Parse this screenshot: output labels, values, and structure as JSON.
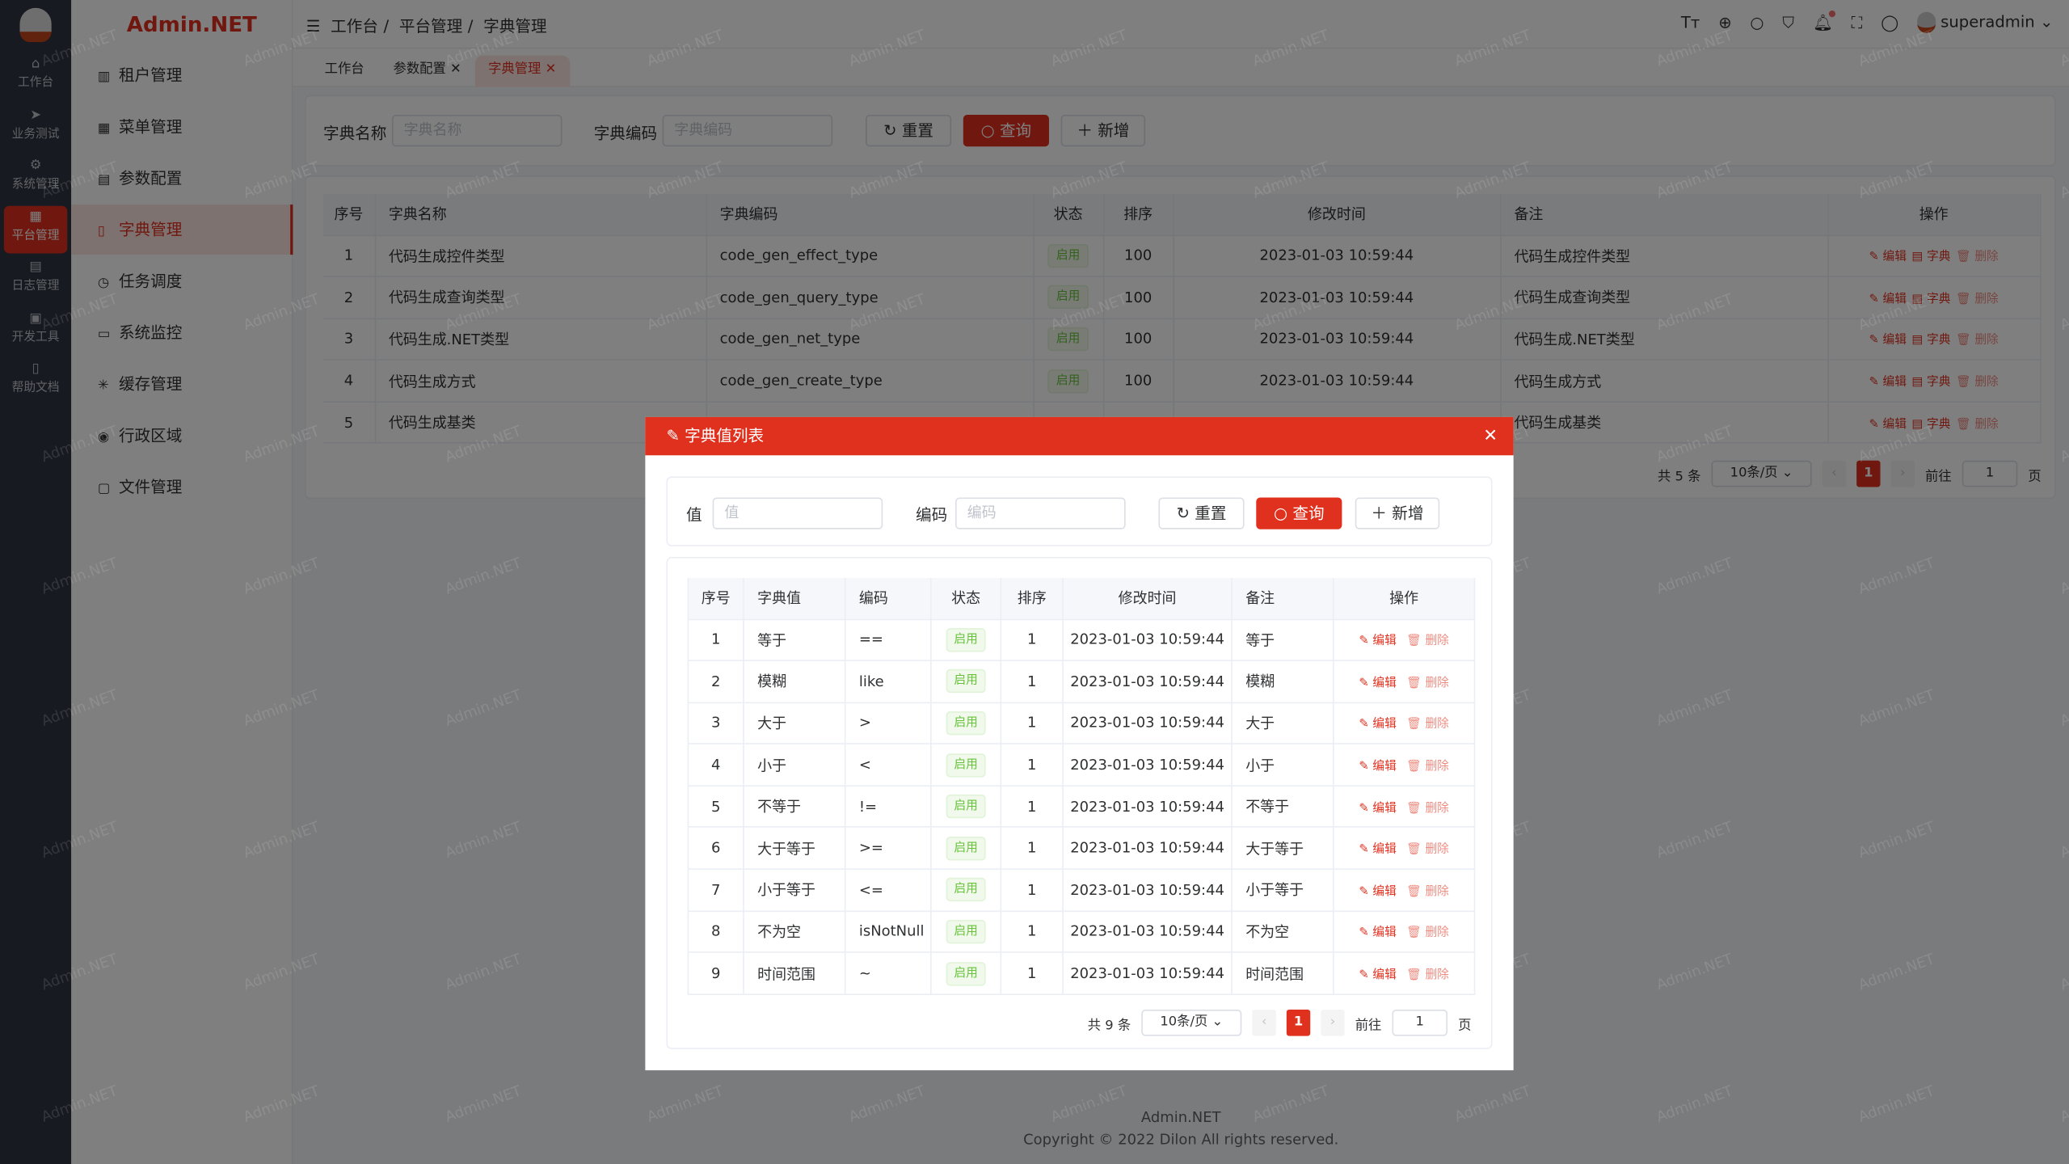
{
  "brand": "Admin.NET",
  "watermark": "Admin.NET",
  "rail": [
    {
      "label": "工作台",
      "icon": "home-icon"
    },
    {
      "label": "业务测试",
      "icon": "send-icon"
    },
    {
      "label": "系统管理",
      "icon": "gear-icon"
    },
    {
      "label": "平台管理",
      "icon": "grid-icon",
      "active": true
    },
    {
      "label": "日志管理",
      "icon": "document-icon"
    },
    {
      "label": "开发工具",
      "icon": "chip-icon"
    },
    {
      "label": "帮助文档",
      "icon": "book-icon"
    }
  ],
  "menu": [
    {
      "label": "租户管理",
      "icon": "building-icon"
    },
    {
      "label": "菜单管理",
      "icon": "grid-icon"
    },
    {
      "label": "参数配置",
      "icon": "document-icon"
    },
    {
      "label": "字典管理",
      "icon": "book-icon",
      "active": true
    },
    {
      "label": "任务调度",
      "icon": "alarm-icon"
    },
    {
      "label": "系统监控",
      "icon": "monitor-icon"
    },
    {
      "label": "缓存管理",
      "icon": "loading-icon"
    },
    {
      "label": "行政区域",
      "icon": "location-icon"
    },
    {
      "label": "文件管理",
      "icon": "file-icon"
    }
  ],
  "breadcrumb": [
    "工作台",
    "平台管理",
    "字典管理"
  ],
  "user": {
    "name": "superadmin"
  },
  "tabs": [
    {
      "label": "工作台"
    },
    {
      "label": "参数配置",
      "closable": true
    },
    {
      "label": "字典管理",
      "closable": true,
      "active": true
    }
  ],
  "search": {
    "name_label": "字典名称",
    "name_placeholder": "字典名称",
    "code_label": "字典编码",
    "code_placeholder": "字典编码",
    "reset": "重置",
    "query": "查询",
    "add": "新增"
  },
  "table": {
    "columns": [
      "序号",
      "字典名称",
      "字典编码",
      "状态",
      "排序",
      "修改时间",
      "备注",
      "操作"
    ],
    "rows": [
      {
        "no": "1",
        "name": "代码生成控件类型",
        "code": "code_gen_effect_type",
        "status": "启用",
        "order": "100",
        "time": "2023-01-03 10:59:44",
        "remark": "代码生成控件类型"
      },
      {
        "no": "2",
        "name": "代码生成查询类型",
        "code": "code_gen_query_type",
        "status": "启用",
        "order": "100",
        "time": "2023-01-03 10:59:44",
        "remark": "代码生成查询类型"
      },
      {
        "no": "3",
        "name": "代码生成.NET类型",
        "code": "code_gen_net_type",
        "status": "启用",
        "order": "100",
        "time": "2023-01-03 10:59:44",
        "remark": "代码生成.NET类型"
      },
      {
        "no": "4",
        "name": "代码生成方式",
        "code": "code_gen_create_type",
        "status": "启用",
        "order": "100",
        "time": "2023-01-03 10:59:44",
        "remark": "代码生成方式"
      },
      {
        "no": "5",
        "name": "代码生成基类",
        "code": "",
        "status": "",
        "order": "",
        "time": "",
        "remark": "代码生成基类"
      }
    ],
    "actions": {
      "edit": "编辑",
      "dict": "字典",
      "delete": "删除"
    }
  },
  "pagination": {
    "total": "共 5 条",
    "page_size": "10条/页",
    "current": "1",
    "goto": "前往",
    "goto_value": "1",
    "page_suffix": "页"
  },
  "footer": {
    "name": "Admin.NET",
    "copyright": "Copyright © 2022 Dilon All rights reserved."
  },
  "modal": {
    "title": "字典值列表",
    "search": {
      "value_label": "值",
      "value_placeholder": "值",
      "code_label": "编码",
      "code_placeholder": "编码",
      "reset": "重置",
      "query": "查询",
      "add": "新增"
    },
    "columns": [
      "序号",
      "字典值",
      "编码",
      "状态",
      "排序",
      "修改时间",
      "备注",
      "操作"
    ],
    "rows": [
      {
        "no": "1",
        "value": "等于",
        "code": "==",
        "status": "启用",
        "order": "1",
        "time": "2023-01-03 10:59:44",
        "remark": "等于"
      },
      {
        "no": "2",
        "value": "模糊",
        "code": "like",
        "status": "启用",
        "order": "1",
        "time": "2023-01-03 10:59:44",
        "remark": "模糊"
      },
      {
        "no": "3",
        "value": "大于",
        "code": ">",
        "status": "启用",
        "order": "1",
        "time": "2023-01-03 10:59:44",
        "remark": "大于"
      },
      {
        "no": "4",
        "value": "小于",
        "code": "<",
        "status": "启用",
        "order": "1",
        "time": "2023-01-03 10:59:44",
        "remark": "小于"
      },
      {
        "no": "5",
        "value": "不等于",
        "code": "!=",
        "status": "启用",
        "order": "1",
        "time": "2023-01-03 10:59:44",
        "remark": "不等于"
      },
      {
        "no": "6",
        "value": "大于等于",
        "code": ">=",
        "status": "启用",
        "order": "1",
        "time": "2023-01-03 10:59:44",
        "remark": "大于等于"
      },
      {
        "no": "7",
        "value": "小于等于",
        "code": "<=",
        "status": "启用",
        "order": "1",
        "time": "2023-01-03 10:59:44",
        "remark": "小于等于"
      },
      {
        "no": "8",
        "value": "不为空",
        "code": "isNotNull",
        "status": "启用",
        "order": "1",
        "time": "2023-01-03 10:59:44",
        "remark": "不为空"
      },
      {
        "no": "9",
        "value": "时间范围",
        "code": "~",
        "status": "启用",
        "order": "1",
        "time": "2023-01-03 10:59:44",
        "remark": "时间范围"
      }
    ],
    "actions": {
      "edit": "编辑",
      "delete": "删除"
    },
    "pagination": {
      "total": "共 9 条",
      "page_size": "10条/页",
      "current": "1",
      "goto": "前往",
      "goto_value": "1",
      "page_suffix": "页"
    }
  },
  "colors": {
    "primary": "#e0301e",
    "success": "#67c23a",
    "rail": "#2e3440"
  }
}
